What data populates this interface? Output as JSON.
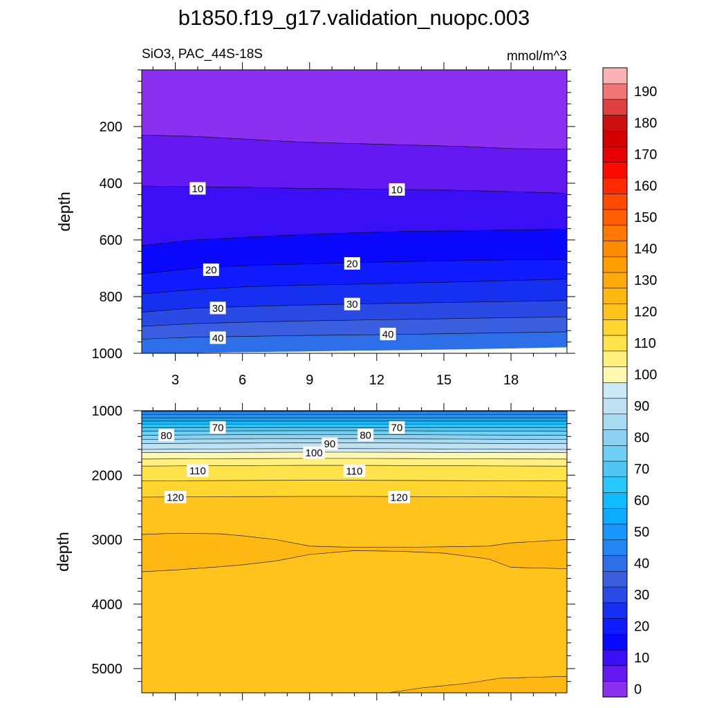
{
  "title": "b1850.f19_g17.validation_nuopc.003",
  "left_subtitle": "SiO3, PAC_44S-18S",
  "units": "mmol/m^3",
  "chart_data": [
    {
      "type": "contour",
      "panel": "upper",
      "ylabel": "depth",
      "x_ticks": [
        3,
        6,
        9,
        12,
        15,
        18
      ],
      "y_ticks": [
        200,
        400,
        600,
        800,
        1000
      ],
      "xlim": [
        1.5,
        20.5
      ],
      "ylim": [
        0,
        1000
      ],
      "y_reversed": true,
      "fill_bands": [
        {
          "low": 0,
          "high": 5,
          "boundary_depth": [
            230,
            235,
            245,
            255,
            260,
            265,
            270,
            278,
            280
          ]
        },
        {
          "low": 5,
          "high": 10,
          "boundary_depth": [
            410,
            412,
            415,
            418,
            420,
            422,
            425,
            430,
            435
          ]
        },
        {
          "low": 10,
          "high": 15,
          "boundary_depth": [
            620,
            600,
            590,
            582,
            575,
            570,
            568,
            565,
            562
          ]
        },
        {
          "low": 15,
          "high": 20,
          "boundary_depth": [
            720,
            700,
            690,
            685,
            680,
            676,
            673,
            670,
            668
          ]
        },
        {
          "low": 20,
          "high": 25,
          "boundary_depth": [
            790,
            775,
            765,
            760,
            756,
            752,
            748,
            743,
            738
          ]
        },
        {
          "low": 25,
          "high": 30,
          "boundary_depth": [
            855,
            840,
            835,
            830,
            826,
            823,
            820,
            817,
            814
          ]
        },
        {
          "low": 30,
          "high": 35,
          "boundary_depth": [
            905,
            895,
            890,
            886,
            883,
            880,
            877,
            874,
            872
          ]
        },
        {
          "low": 35,
          "high": 40,
          "boundary_depth": [
            950,
            943,
            940,
            937,
            935,
            933,
            930,
            927,
            924
          ]
        },
        {
          "low": 40,
          "high": 45,
          "boundary_depth": [
            1000,
            998,
            995,
            993,
            990,
            988,
            985,
            982,
            978
          ]
        }
      ],
      "contour_labels": [
        {
          "text": "10",
          "x": 4.0,
          "y": 418
        },
        {
          "text": "10",
          "x": 12.9,
          "y": 422
        },
        {
          "text": "20",
          "x": 4.6,
          "y": 705
        },
        {
          "text": "20",
          "x": 10.9,
          "y": 683
        },
        {
          "text": "30",
          "x": 4.9,
          "y": 840
        },
        {
          "text": "30",
          "x": 10.9,
          "y": 826
        },
        {
          "text": "40",
          "x": 4.9,
          "y": 945
        },
        {
          "text": "40",
          "x": 12.5,
          "y": 932
        }
      ]
    },
    {
      "type": "contour",
      "panel": "lower",
      "ylabel": "depth",
      "x_ticks": [
        3,
        6,
        9,
        12,
        15,
        18
      ],
      "y_ticks": [
        1000,
        2000,
        3000,
        4000,
        5000
      ],
      "xlim": [
        1.5,
        20.5
      ],
      "ylim": [
        1000,
        5375
      ],
      "y_reversed": true,
      "fill_bands": [
        {
          "low": 40,
          "high": 45,
          "boundary_depth": [
            1010,
            1010,
            1010,
            1010,
            1010,
            1010,
            1010,
            1010,
            1010
          ]
        },
        {
          "low": 45,
          "high": 50,
          "boundary_depth": [
            1060,
            1060,
            1060,
            1060,
            1060,
            1060,
            1060,
            1060,
            1060
          ]
        },
        {
          "low": 50,
          "high": 55,
          "boundary_depth": [
            1110,
            1110,
            1110,
            1110,
            1110,
            1110,
            1110,
            1110,
            1110
          ]
        },
        {
          "low": 55,
          "high": 60,
          "boundary_depth": [
            1160,
            1160,
            1160,
            1160,
            1160,
            1160,
            1160,
            1160,
            1160
          ]
        },
        {
          "low": 60,
          "high": 65,
          "boundary_depth": [
            1210,
            1210,
            1210,
            1210,
            1210,
            1210,
            1210,
            1210,
            1210
          ]
        },
        {
          "low": 65,
          "high": 70,
          "boundary_depth": [
            1260,
            1260,
            1260,
            1260,
            1260,
            1260,
            1260,
            1260,
            1260
          ]
        },
        {
          "low": 70,
          "high": 75,
          "boundary_depth": [
            1320,
            1315,
            1312,
            1310,
            1310,
            1312,
            1315,
            1318,
            1320
          ]
        },
        {
          "low": 75,
          "high": 80,
          "boundary_depth": [
            1380,
            1375,
            1372,
            1370,
            1370,
            1372,
            1375,
            1378,
            1380
          ]
        },
        {
          "low": 80,
          "high": 85,
          "boundary_depth": [
            1445,
            1440,
            1437,
            1435,
            1435,
            1437,
            1440,
            1443,
            1445
          ]
        },
        {
          "low": 85,
          "high": 90,
          "boundary_depth": [
            1510,
            1505,
            1502,
            1500,
            1500,
            1502,
            1505,
            1508,
            1510
          ]
        },
        {
          "low": 90,
          "high": 95,
          "boundary_depth": [
            1600,
            1595,
            1590,
            1588,
            1588,
            1590,
            1595,
            1598,
            1600
          ]
        },
        {
          "low": 95,
          "high": 100,
          "boundary_depth": [
            1650,
            1648,
            1645,
            1643,
            1643,
            1645,
            1648,
            1650,
            1650
          ]
        },
        {
          "low": 100,
          "high": 105,
          "boundary_depth": [
            1750,
            1745,
            1742,
            1740,
            1740,
            1742,
            1745,
            1748,
            1750
          ]
        },
        {
          "low": 105,
          "high": 110,
          "boundary_depth": [
            1860,
            1855,
            1850,
            1848,
            1848,
            1850,
            1855,
            1858,
            1860
          ]
        },
        {
          "low": 110,
          "high": 115,
          "boundary_depth": [
            2090,
            2085,
            2082,
            2080,
            2080,
            2082,
            2085,
            2088,
            2090
          ]
        },
        {
          "low": 115,
          "high": 120,
          "boundary_depth": [
            2340,
            2335,
            2332,
            2330,
            2330,
            2332,
            2335,
            2338,
            2340
          ]
        },
        {
          "low": 120,
          "high": 125,
          "boundary_depth": [
            5375,
            5375,
            5375,
            5375,
            5375,
            5375,
            5375,
            5375,
            5375
          ]
        }
      ],
      "enclosed_regions": [
        {
          "range": [
            125,
            130
          ],
          "x": [
            1.5,
            3.0,
            5.0,
            6.0,
            7.5,
            9.0,
            11.0,
            13.0,
            15.0,
            17.0,
            18.0,
            20.5,
            20.5,
            18.0,
            17.0,
            15.0,
            13.0,
            11.0,
            9.0,
            7.5,
            6.0,
            5.0,
            3.0,
            1.5
          ],
          "y": [
            2920,
            2900,
            2910,
            2940,
            3000,
            3100,
            3120,
            3120,
            3110,
            3100,
            3050,
            3000,
            3450,
            3430,
            3300,
            3210,
            3180,
            3170,
            3230,
            3330,
            3390,
            3420,
            3470,
            3500
          ]
        },
        {
          "range": [
            125,
            130
          ],
          "x": [
            12.5,
            14.0,
            16.0,
            17.5,
            20.5,
            20.5,
            12.5
          ],
          "y": [
            5375,
            5300,
            5230,
            5150,
            5120,
            5375,
            5375
          ]
        }
      ],
      "contour_labels": [
        {
          "text": "70",
          "x": 4.9,
          "y": 1260
        },
        {
          "text": "70",
          "x": 12.9,
          "y": 1260
        },
        {
          "text": "80",
          "x": 2.6,
          "y": 1380
        },
        {
          "text": "80",
          "x": 11.5,
          "y": 1375
        },
        {
          "text": "90",
          "x": 9.9,
          "y": 1510
        },
        {
          "text": "100",
          "x": 9.2,
          "y": 1650
        },
        {
          "text": "110",
          "x": 4.0,
          "y": 1930
        },
        {
          "text": "110",
          "x": 11.0,
          "y": 1935
        },
        {
          "text": "120",
          "x": 3.0,
          "y": 2340
        },
        {
          "text": "120",
          "x": 13.0,
          "y": 2340
        }
      ]
    }
  ],
  "colorbar": {
    "label_values": [
      "0",
      "10",
      "20",
      "30",
      "40",
      "50",
      "60",
      "70",
      "80",
      "90",
      "100",
      "110",
      "120",
      "130",
      "140",
      "150",
      "160",
      "170",
      "180",
      "190"
    ],
    "levels": [
      0,
      5,
      10,
      15,
      20,
      25,
      30,
      35,
      40,
      45,
      50,
      55,
      60,
      65,
      70,
      75,
      80,
      85,
      90,
      95,
      100,
      105,
      110,
      115,
      120,
      125,
      130,
      135,
      140,
      145,
      150,
      155,
      160,
      165,
      170,
      175,
      180,
      185,
      190,
      195,
      200
    ],
    "colors": [
      "#8b2ff0",
      "#6418f2",
      "#3a0ff5",
      "#0b08ff",
      "#101cff",
      "#1530f0",
      "#2a4ae6",
      "#3a5ee0",
      "#2d6fe8",
      "#2384f5",
      "#1898ff",
      "#0cabff",
      "#10bcff",
      "#28c8ff",
      "#50c6f2",
      "#6fd0f5",
      "#8bd2f2",
      "#a6dbf2",
      "#bfe2f2",
      "#cbe8f5",
      "#fff8b0",
      "#fff080",
      "#ffe34a",
      "#ffd52e",
      "#ffc31c",
      "#ffb711",
      "#ffaa0a",
      "#ff9f00",
      "#ff8c00",
      "#ff7800",
      "#ff5f00",
      "#ff4a00",
      "#ff2a00",
      "#ff0a00",
      "#e80000",
      "#d40000",
      "#cc1010",
      "#e04040",
      "#f07575",
      "#f9b3b3"
    ]
  }
}
